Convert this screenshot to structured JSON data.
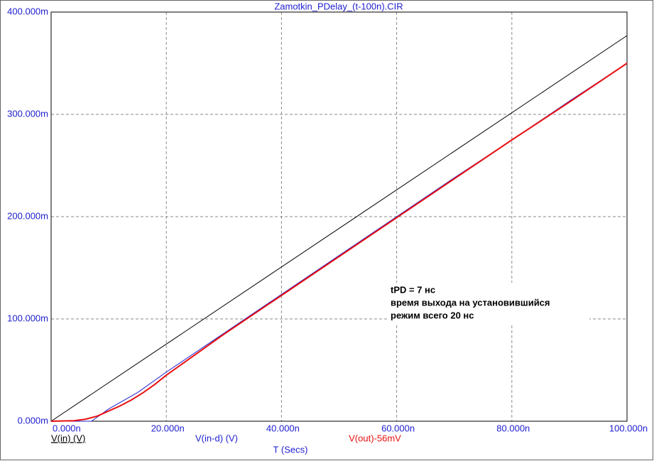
{
  "chart_data": {
    "type": "line",
    "title": "Zamotkin_PDelay_(t-100n).CIR",
    "x_label": "T (Secs)",
    "xlim": [
      0,
      100
    ],
    "ylim": [
      0,
      400
    ],
    "xticks": [
      {
        "value": 0,
        "label": "0.000n"
      },
      {
        "value": 20,
        "label": "20.000n"
      },
      {
        "value": 40,
        "label": "40.000n"
      },
      {
        "value": 60,
        "label": "60.000n"
      },
      {
        "value": 80,
        "label": "80.000n"
      },
      {
        "value": 100,
        "label": "100.000n"
      }
    ],
    "yticks": [
      {
        "value": 0,
        "label": "0.000m"
      },
      {
        "value": 100,
        "label": "100.000m"
      },
      {
        "value": 200,
        "label": "200.000m"
      },
      {
        "value": 300,
        "label": "300.000m"
      },
      {
        "value": 400,
        "label": "400.000m"
      }
    ],
    "grid": true,
    "series": [
      {
        "name": "V(in) (V)",
        "color": "#000000",
        "x": [
          0,
          100
        ],
        "values": [
          0,
          377
        ]
      },
      {
        "name": "V(in-d) (V)",
        "color": "#2020d0",
        "x": [
          0,
          7,
          10,
          15,
          20,
          30,
          40,
          50,
          60,
          70,
          80,
          90,
          100
        ],
        "values": [
          0,
          0,
          12,
          28,
          48,
          86,
          124,
          162,
          200,
          238,
          275,
          313,
          350
        ]
      },
      {
        "name": "V(out)-56mV",
        "color": "#e81010",
        "x": [
          0,
          4,
          6,
          8,
          10,
          12,
          14,
          16,
          18,
          20,
          30,
          40,
          50,
          60,
          70,
          80,
          90,
          100
        ],
        "values": [
          0,
          0.5,
          2,
          5,
          10,
          15,
          21,
          28,
          36,
          45,
          85,
          123,
          161,
          199,
          237,
          275,
          312,
          350
        ]
      }
    ],
    "annotations": [
      "tPD = 7 нс",
      "время выхода на установившийся",
      "режим всего 20 нс"
    ]
  }
}
